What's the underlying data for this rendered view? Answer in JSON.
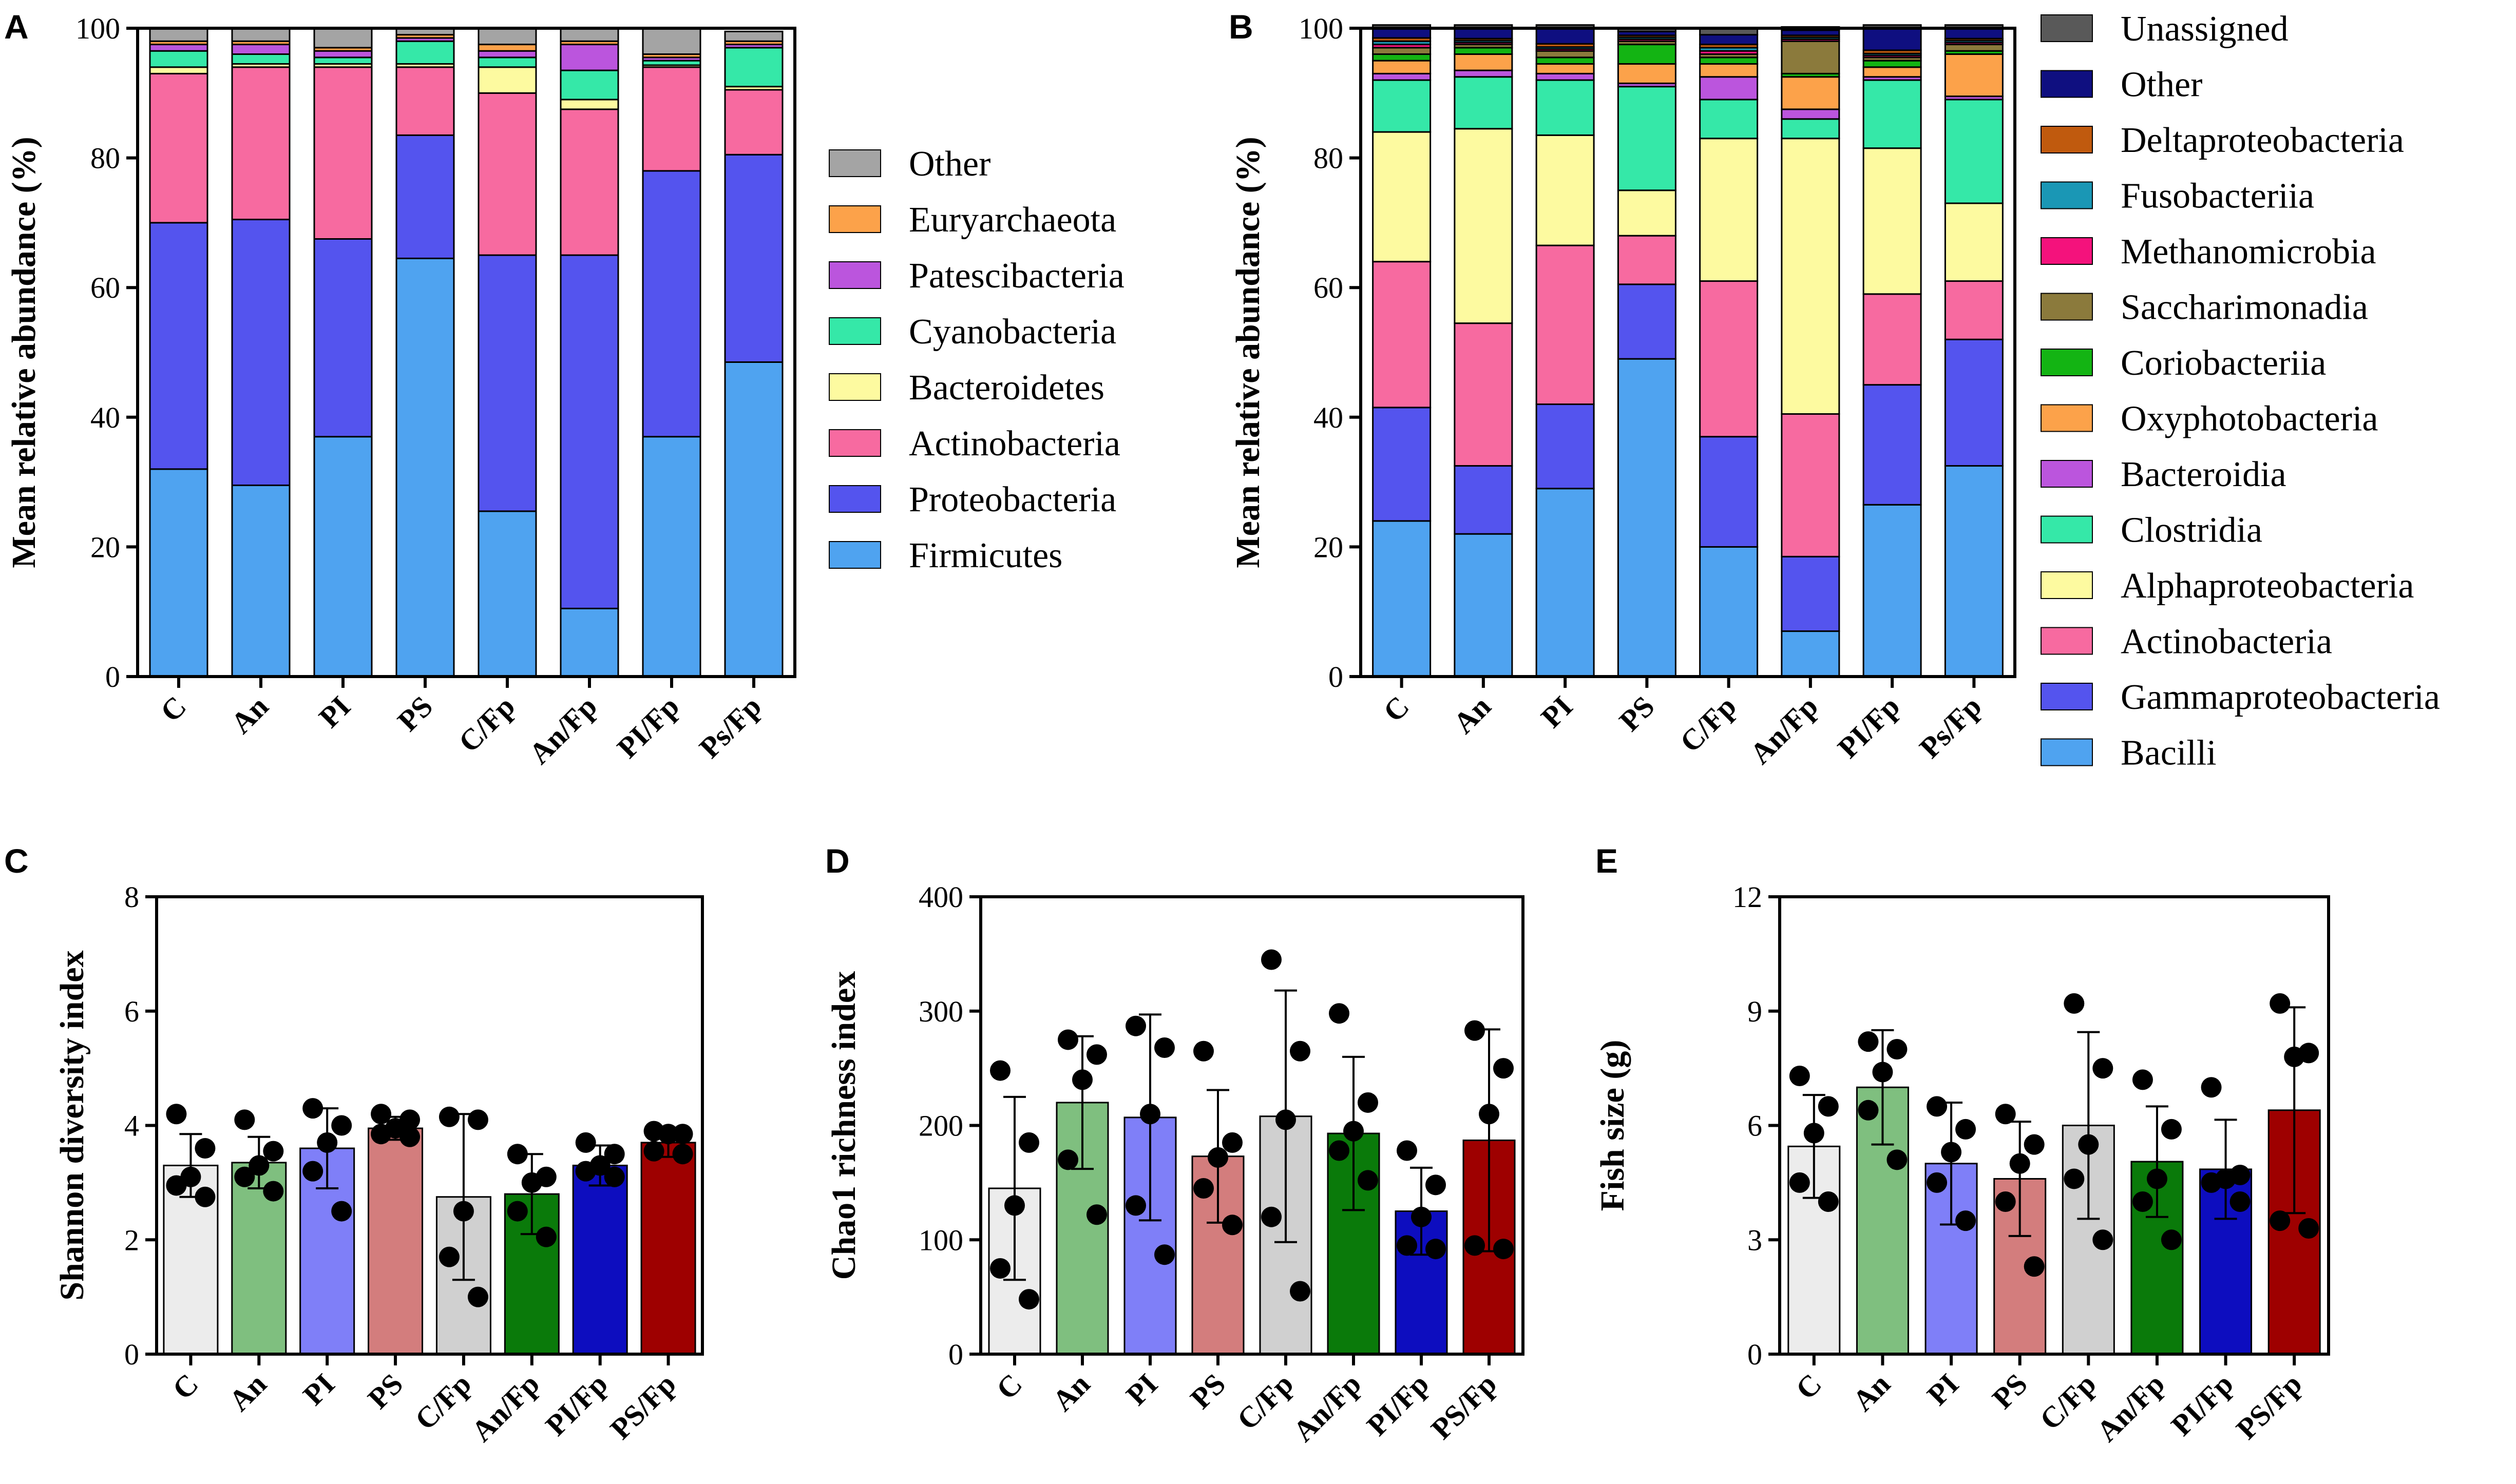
{
  "chart_data": [
    {
      "panel": "A",
      "type": "bar",
      "stacked": true,
      "ylabel": "Mean relative abundance (%)",
      "ylim": [
        0,
        100
      ],
      "yticks": [
        0,
        20,
        40,
        60,
        80,
        100
      ],
      "categories": [
        "C",
        "An",
        "PI",
        "PS",
        "C/Fp",
        "An/Fp",
        "PI/Fp",
        "Ps/Fp"
      ],
      "legend": "right",
      "series": [
        {
          "name": "Firmicutes",
          "color": "#4fa3f0",
          "values": [
            32,
            29.5,
            37,
            64.5,
            25.5,
            10.5,
            37,
            48.5
          ]
        },
        {
          "name": "Proteobacteria",
          "color": "#5454ee",
          "values": [
            38,
            41,
            30.5,
            19,
            39.5,
            54.5,
            41,
            32
          ]
        },
        {
          "name": "Actinobacteria",
          "color": "#f76aa0",
          "values": [
            23,
            23.5,
            26.5,
            10.5,
            25,
            22.5,
            16,
            10
          ]
        },
        {
          "name": "Bacteroidetes",
          "color": "#fdfaa0",
          "values": [
            1,
            0.5,
            0.5,
            0.5,
            4,
            1.5,
            0.3,
            0.5
          ]
        },
        {
          "name": "Cyanobacteria",
          "color": "#35e8a8",
          "values": [
            2.5,
            1.5,
            1,
            3.5,
            1.5,
            4.5,
            0.7,
            6
          ]
        },
        {
          "name": "Patescibacteria",
          "color": "#bb55dd",
          "values": [
            1,
            1.5,
            1,
            0.5,
            1,
            4,
            0.5,
            0.5
          ]
        },
        {
          "name": "Euryarchaeota",
          "color": "#fca24a",
          "values": [
            0.5,
            0.5,
            0.5,
            0.5,
            1,
            0.5,
            0.5,
            0.5
          ]
        },
        {
          "name": "Other",
          "color": "#a4a4a4",
          "values": [
            2,
            2,
            3,
            1,
            2.5,
            2,
            4,
            1.5
          ]
        }
      ]
    },
    {
      "panel": "B",
      "type": "bar",
      "stacked": true,
      "ylabel": "Mean relative abundance (%)",
      "ylim": [
        0,
        100
      ],
      "yticks": [
        0,
        20,
        40,
        60,
        80,
        100
      ],
      "categories": [
        "C",
        "An",
        "PI",
        "PS",
        "C/Fp",
        "An/Fp",
        "PI/Fp",
        "Ps/Fp"
      ],
      "legend": "right",
      "series": [
        {
          "name": "Bacilli",
          "color": "#4fa3f0",
          "values": [
            24,
            22,
            29,
            49,
            20,
            7,
            26.5,
            32.5
          ]
        },
        {
          "name": "Gammaproteobacteria",
          "color": "#5454ee",
          "values": [
            17.5,
            10.5,
            13,
            11.5,
            17,
            11.5,
            18.5,
            19.5
          ]
        },
        {
          "name": "Actinobacteria",
          "color": "#f76aa0",
          "values": [
            22.5,
            22,
            24.5,
            7.5,
            24,
            22,
            14,
            9
          ]
        },
        {
          "name": "Alphaproteobacteria",
          "color": "#fdfaa0",
          "values": [
            20,
            30,
            17,
            7,
            22,
            42.5,
            22.5,
            12
          ]
        },
        {
          "name": "Clostridia",
          "color": "#35e8a8",
          "values": [
            8,
            8,
            8.5,
            16,
            6,
            3,
            10.5,
            16
          ]
        },
        {
          "name": "Bacteroidia",
          "color": "#bb55dd",
          "values": [
            1,
            1,
            1,
            0.5,
            3.5,
            1.5,
            0.5,
            0.5
          ]
        },
        {
          "name": "Oxyphotobacteria",
          "color": "#fca24a",
          "values": [
            2,
            2.5,
            1.5,
            3,
            2,
            5,
            1.5,
            6.5
          ]
        },
        {
          "name": "Coriobacteriia",
          "color": "#13b413",
          "values": [
            1,
            1,
            1,
            3,
            1,
            0.5,
            1,
            0.5
          ]
        },
        {
          "name": "Saccharimonadia",
          "color": "#8b7a3c",
          "values": [
            1,
            0.5,
            1,
            0.5,
            0.5,
            5,
            0.5,
            1
          ]
        },
        {
          "name": "Methanomicrobia",
          "color": "#f4127c",
          "values": [
            0.5,
            0.3,
            0.3,
            0.3,
            0.5,
            0.3,
            0.3,
            0.3
          ]
        },
        {
          "name": "Fusobacteriia",
          "color": "#1a97b5",
          "values": [
            0.5,
            0.3,
            0.3,
            0.3,
            0.5,
            0.3,
            0.3,
            0.3
          ]
        },
        {
          "name": "Deltaproteobacteria",
          "color": "#c05a0e",
          "values": [
            0.5,
            0.3,
            0.5,
            0.3,
            0.5,
            0.3,
            0.5,
            0.3
          ]
        },
        {
          "name": "Other",
          "color": "#0f0f80",
          "values": [
            1.5,
            1.6,
            2.4,
            0.6,
            1.5,
            0.8,
            3.4,
            1.6
          ]
        },
        {
          "name": "Unassigned",
          "color": "#595959",
          "values": [
            0.5,
            0.5,
            0.5,
            0.5,
            1,
            0.5,
            0.5,
            0.5
          ]
        }
      ]
    },
    {
      "panel": "C",
      "type": "bar",
      "ylabel": "Shannon diversity index",
      "ylim": [
        0,
        8
      ],
      "yticks": [
        0,
        2,
        4,
        6,
        8
      ],
      "categories": [
        "C",
        "An",
        "PI",
        "PS",
        "C/Fp",
        "An/Fp",
        "PI/Fp",
        "PS/Fp"
      ],
      "colors": [
        "#ececec",
        "#7fbf7f",
        "#7f7ff8",
        "#d37d7d",
        "#d0d0d0",
        "#0a7a0a",
        "#0d0dbf",
        "#9e0000"
      ],
      "values": [
        3.3,
        3.35,
        3.6,
        3.95,
        2.75,
        2.8,
        3.3,
        3.7
      ],
      "sd": [
        0.55,
        0.45,
        0.7,
        0.2,
        1.45,
        0.7,
        0.35,
        0.25
      ],
      "points": [
        [
          4.2,
          3.6,
          3.1,
          2.95,
          2.75
        ],
        [
          4.1,
          3.55,
          3.3,
          3.1,
          2.85
        ],
        [
          4.3,
          4.0,
          3.7,
          3.2,
          2.5
        ],
        [
          4.2,
          4.1,
          3.95,
          3.85,
          3.8
        ],
        [
          4.15,
          4.1,
          2.5,
          1.7,
          1.0
        ],
        [
          3.5,
          3.1,
          3.0,
          2.5,
          2.05
        ],
        [
          3.7,
          3.5,
          3.3,
          3.2,
          3.1
        ],
        [
          3.9,
          3.85,
          3.85,
          3.55,
          3.5
        ]
      ]
    },
    {
      "panel": "D",
      "type": "bar",
      "ylabel": "Chao1 richness index",
      "ylim": [
        0,
        400
      ],
      "yticks": [
        0,
        100,
        200,
        300,
        400
      ],
      "categories": [
        "C",
        "An",
        "PI",
        "PS",
        "C/Fp",
        "An/Fp",
        "PI/Fp",
        "PS/Fp"
      ],
      "colors": [
        "#ececec",
        "#7fbf7f",
        "#7f7ff8",
        "#d37d7d",
        "#d0d0d0",
        "#0a7a0a",
        "#0d0dbf",
        "#9e0000"
      ],
      "values": [
        145,
        220,
        207,
        173,
        208,
        193,
        125,
        187
      ],
      "sd": [
        80,
        58,
        90,
        58,
        110,
        67,
        38,
        97
      ],
      "points": [
        [
          248,
          185,
          130,
          75,
          48
        ],
        [
          275,
          262,
          240,
          170,
          122
        ],
        [
          287,
          268,
          210,
          130,
          87
        ],
        [
          265,
          185,
          172,
          145,
          113
        ],
        [
          345,
          265,
          205,
          120,
          55
        ],
        [
          298,
          220,
          195,
          178,
          152
        ],
        [
          178,
          148,
          120,
          95,
          92
        ],
        [
          283,
          250,
          210,
          95,
          92
        ]
      ]
    },
    {
      "panel": "E",
      "type": "bar",
      "ylabel": "Fish size (g)",
      "ylim": [
        0,
        12
      ],
      "yticks": [
        0,
        3,
        6,
        9,
        12
      ],
      "categories": [
        "C",
        "An",
        "PI",
        "PS",
        "C/Fp",
        "An/Fp",
        "PI/Fp",
        "PS/Fp"
      ],
      "colors": [
        "#ececec",
        "#7fbf7f",
        "#7f7ff8",
        "#d37d7d",
        "#d0d0d0",
        "#0a7a0a",
        "#0d0dbf",
        "#9e0000"
      ],
      "values": [
        5.45,
        7.0,
        5.0,
        4.6,
        6.0,
        5.05,
        4.85,
        6.4
      ],
      "sd": [
        1.35,
        1.5,
        1.6,
        1.5,
        2.45,
        1.45,
        1.3,
        2.7
      ],
      "points": [
        [
          7.3,
          6.5,
          5.8,
          4.5,
          4.0
        ],
        [
          8.2,
          8.0,
          7.4,
          6.4,
          5.1
        ],
        [
          6.5,
          5.9,
          5.3,
          4.5,
          3.5
        ],
        [
          6.3,
          5.5,
          5.0,
          4.0,
          2.3
        ],
        [
          9.2,
          7.5,
          5.5,
          4.6,
          3.0
        ],
        [
          7.2,
          5.9,
          4.6,
          4.0,
          3.0
        ],
        [
          7.0,
          4.7,
          4.6,
          4.5,
          4.0
        ],
        [
          9.2,
          7.9,
          7.8,
          3.5,
          3.3
        ]
      ]
    }
  ]
}
